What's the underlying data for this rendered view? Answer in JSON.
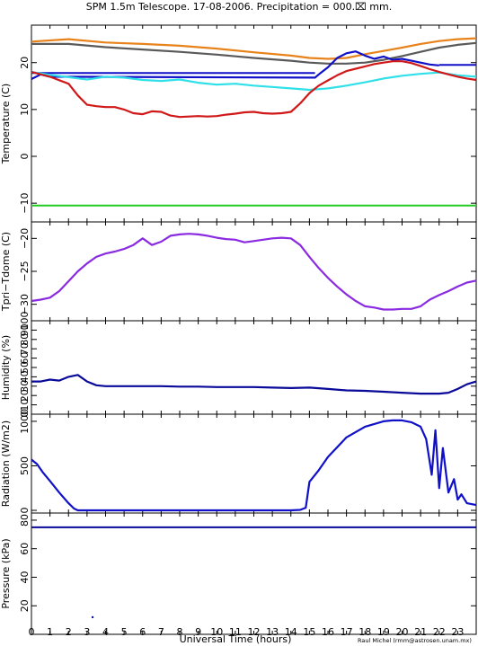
{
  "title": "SPM 1.5m Telescope. 17-08-2006. Precipitation = 000.⌧ mm.",
  "credit": "Raul Michel (rmm@astrosen.unam.mx)",
  "colors": {
    "orange": "#e8821a",
    "gray": "#5a5a5a",
    "blue": "#1010c8",
    "cyan": "#30e0e8",
    "red": "#d01818",
    "green": "#22cc22",
    "purple": "#8a2be2",
    "navy": "#0a0a9a"
  },
  "chart_data": [
    {
      "type": "line",
      "ylabel": "Temperature (C)",
      "ylim": [
        -14,
        28
      ],
      "yticks": [
        -10,
        0,
        10,
        20
      ],
      "x_axis": "Universal Time (hours)",
      "series": [
        {
          "color": "orange",
          "hline": false,
          "x": [
            0,
            2,
            4,
            6,
            8,
            10,
            12,
            14,
            15,
            16,
            17,
            18,
            19,
            20,
            21,
            22,
            23,
            24
          ],
          "y": [
            24.5,
            25,
            24.3,
            24,
            23.6,
            23,
            22.2,
            21.5,
            21,
            20.8,
            21,
            21.8,
            22.5,
            23.2,
            24,
            24.6,
            25,
            25.2
          ]
        },
        {
          "color": "gray",
          "hline": false,
          "x": [
            0,
            2,
            4,
            6,
            8,
            10,
            12,
            14,
            15,
            16,
            17,
            18,
            19,
            20,
            21,
            22,
            23,
            24
          ],
          "y": [
            24,
            24,
            23.3,
            22.8,
            22.3,
            21.7,
            21,
            20.4,
            20,
            19.8,
            19.8,
            20,
            20.6,
            21.4,
            22.3,
            23.2,
            23.8,
            24.2
          ]
        },
        {
          "color": "blue",
          "hline": true,
          "x": [
            0,
            15.3
          ],
          "y": [
            17.8,
            17.8
          ]
        },
        {
          "color": "blue",
          "hline": true,
          "x": [
            22,
            24
          ],
          "y": [
            19.5,
            19.5
          ]
        },
        {
          "color": "blue",
          "hline": false,
          "x": [
            0,
            0.5,
            1,
            15.3,
            15.6,
            16,
            16.5,
            17,
            17.5,
            18,
            18.5,
            19,
            19.5,
            20,
            20.5,
            21,
            21.5,
            22
          ],
          "y": [
            16.5,
            17.5,
            17,
            16.8,
            17.8,
            19,
            21,
            22,
            22.4,
            21.5,
            20.8,
            21.3,
            20.6,
            20.8,
            20.4,
            20,
            19.6,
            19.4
          ]
        },
        {
          "color": "cyan",
          "hline": false,
          "x": [
            0,
            1,
            2,
            3,
            4,
            5,
            6,
            7,
            8,
            9,
            10,
            11,
            12,
            13,
            14,
            15,
            16,
            17,
            18,
            19,
            20,
            21,
            22,
            23,
            24
          ],
          "y": [
            18,
            17.4,
            16.9,
            16.4,
            17,
            16.8,
            16.3,
            16.1,
            16.4,
            15.7,
            15.3,
            15.5,
            15.1,
            14.8,
            14.5,
            14.2,
            14.5,
            15.1,
            15.8,
            16.6,
            17.2,
            17.6,
            17.9,
            17.3,
            17
          ]
        },
        {
          "color": "red",
          "hline": false,
          "x": [
            0,
            1,
            2,
            2.5,
            3,
            3.5,
            4,
            4.5,
            5,
            5.5,
            6,
            6.5,
            7,
            7.5,
            8,
            8.5,
            9,
            9.5,
            10,
            10.5,
            11,
            11.5,
            12,
            12.5,
            13,
            13.5,
            14,
            14.5,
            15,
            15.5,
            16,
            16.5,
            17,
            17.5,
            18,
            18.5,
            19,
            19.5,
            20,
            20.5,
            21,
            21.5,
            22,
            22.5,
            23,
            23.5,
            24
          ],
          "y": [
            18,
            17,
            15.5,
            13,
            11,
            10.7,
            10.5,
            10.5,
            10,
            9.2,
            9,
            9.6,
            9.5,
            8.7,
            8.4,
            8.5,
            8.6,
            8.5,
            8.6,
            8.9,
            9.1,
            9.4,
            9.5,
            9.2,
            9.1,
            9.2,
            9.5,
            11.3,
            13.5,
            15.1,
            16.2,
            17.3,
            18.2,
            18.7,
            19.2,
            19.7,
            20,
            20.3,
            20.3,
            19.9,
            19.3,
            18.6,
            18,
            17.5,
            17,
            16.6,
            16.3
          ]
        },
        {
          "color": "green",
          "hline": true,
          "x": [
            0,
            24
          ],
          "y": [
            -10.5,
            -10.5
          ]
        }
      ]
    },
    {
      "type": "line",
      "ylabel": "Tpri−Tdome (C)",
      "ylim": [
        -32.5,
        -17.5
      ],
      "yticks": [
        -30,
        -25,
        -20
      ],
      "x_axis": "Universal Time (hours)",
      "series": [
        {
          "color": "purple",
          "hline": false,
          "x": [
            0,
            0.5,
            1,
            1.5,
            2,
            2.5,
            3,
            3.5,
            4,
            4.5,
            5,
            5.5,
            6,
            6.5,
            7,
            7.5,
            8,
            8.5,
            9,
            9.5,
            10,
            10.5,
            11,
            11.5,
            12,
            12.5,
            13,
            13.5,
            14,
            14.5,
            15,
            15.5,
            16,
            16.5,
            17,
            17.5,
            18,
            18.5,
            19,
            19.5,
            20,
            20.5,
            21,
            21.5,
            22,
            22.5,
            23,
            23.5,
            24
          ],
          "y": [
            -29.5,
            -29.3,
            -29,
            -28,
            -26.5,
            -25,
            -23.8,
            -22.8,
            -22.3,
            -22,
            -21.6,
            -21,
            -20,
            -21,
            -20.5,
            -19.6,
            -19.4,
            -19.3,
            -19.4,
            -19.6,
            -19.9,
            -20.1,
            -20.2,
            -20.6,
            -20.4,
            -20.2,
            -20,
            -19.9,
            -20,
            -21,
            -22.8,
            -24.5,
            -26,
            -27.3,
            -28.5,
            -29.5,
            -30.3,
            -30.5,
            -30.8,
            -30.8,
            -30.7,
            -30.7,
            -30.3,
            -29.3,
            -28.6,
            -28,
            -27.3,
            -26.7,
            -26.4
          ]
        }
      ]
    },
    {
      "type": "line",
      "ylabel": "Humidity (%)",
      "ylim": [
        0,
        100
      ],
      "yticks": [
        0,
        10,
        20,
        30,
        40,
        50,
        60,
        70,
        80,
        90,
        100
      ],
      "x_axis": "Universal Time (hours)",
      "series": [
        {
          "color": "navy",
          "hline": false,
          "x": [
            0,
            0.5,
            1,
            1.5,
            2,
            2.5,
            3,
            3.5,
            4,
            5,
            6,
            7,
            8,
            9,
            10,
            11,
            12,
            13,
            14,
            15,
            16,
            17,
            18,
            19,
            20,
            21,
            22,
            22.5,
            23,
            23.5,
            24
          ],
          "y": [
            35,
            35,
            37,
            36,
            40,
            42,
            35,
            31,
            30,
            30,
            30,
            30,
            29.5,
            29.5,
            29,
            29,
            29,
            28.5,
            28,
            28.5,
            27,
            25.5,
            25,
            24,
            23,
            22,
            22,
            23,
            27,
            32,
            35
          ]
        }
      ]
    },
    {
      "type": "line",
      "ylabel": "Radiation (W/m2)",
      "ylim": [
        -30,
        1080
      ],
      "yticks": [
        0,
        500,
        1000
      ],
      "x_axis": "Universal Time (hours)",
      "series": [
        {
          "color": "blue",
          "hline": false,
          "x": [
            0,
            0.3,
            0.6,
            1,
            1.5,
            2,
            2.3,
            2.5,
            3,
            5,
            8,
            11,
            13,
            14,
            14.5,
            14.8,
            15,
            15.5,
            16,
            17,
            18,
            19,
            19.5,
            20,
            20.5,
            21,
            21.3,
            21.6,
            21.8,
            22,
            22.2,
            22.5,
            22.8,
            23,
            23.2,
            23.5,
            24
          ],
          "y": [
            570,
            520,
            430,
            330,
            200,
            80,
            20,
            0,
            0,
            0,
            0,
            0,
            0,
            0,
            5,
            30,
            320,
            450,
            600,
            820,
            940,
            1000,
            1010,
            1010,
            990,
            940,
            800,
            400,
            900,
            250,
            700,
            200,
            350,
            120,
            180,
            80,
            60
          ]
        }
      ]
    },
    {
      "type": "line",
      "ylabel": "Pressure (kPa)",
      "ylim": [
        0,
        85
      ],
      "yticks": [
        20,
        40,
        60,
        80
      ],
      "x_axis": "Universal Time (hours)",
      "xticks": [
        "0",
        "1",
        "2",
        "3",
        "4",
        "5",
        "6",
        "7",
        "8",
        "9",
        "10",
        "11",
        "12",
        "13",
        "14",
        "15",
        "16",
        "17",
        "18",
        "19",
        "20",
        "21",
        "22",
        "23"
      ],
      "series": [
        {
          "color": "navy",
          "hline": true,
          "x": [
            0,
            24
          ],
          "y": [
            75,
            75
          ]
        },
        {
          "color": "navy",
          "hline": false,
          "x": [
            3.3
          ],
          "y": [
            12
          ]
        }
      ]
    }
  ]
}
